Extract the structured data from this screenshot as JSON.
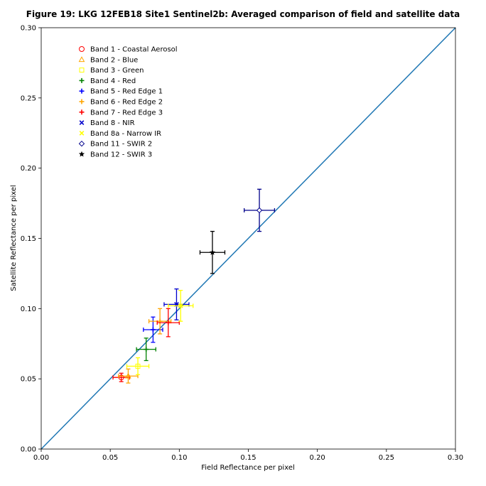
{
  "chart_data": {
    "type": "scatter",
    "title": "Figure 19: LKG 12FEB18 Site1 Sentinel2b: Averaged comparison of field and satellite data",
    "xlabel": "Field Reflectance per pixel",
    "ylabel": "Satellite Reflectance per pixel",
    "xlim": [
      0,
      0.3
    ],
    "ylim": [
      0,
      0.3
    ],
    "xticks": [
      "0.00",
      "0.05",
      "0.10",
      "0.15",
      "0.20",
      "0.25",
      "0.30"
    ],
    "yticks": [
      "0.00",
      "0.05",
      "0.10",
      "0.15",
      "0.20",
      "0.25",
      "0.30"
    ],
    "grid": false,
    "legend_position": "upper-left",
    "reference_line": {
      "x": [
        0,
        0.3
      ],
      "y": [
        0,
        0.3
      ],
      "color": "#1f77b4"
    },
    "series": [
      {
        "name": "Band 1 - Coastal Aerosol",
        "marker": "circle",
        "color": "#ff0000",
        "x": 0.058,
        "y": 0.051,
        "xerr": 0.006,
        "yerr": 0.003
      },
      {
        "name": "Band 2 - Blue",
        "marker": "triangle",
        "color": "#ffa500",
        "x": 0.063,
        "y": 0.052,
        "xerr": 0.007,
        "yerr": 0.005
      },
      {
        "name": "Band 3 - Green",
        "marker": "square",
        "color": "#ffff00",
        "x": 0.07,
        "y": 0.059,
        "xerr": 0.008,
        "yerr": 0.006
      },
      {
        "name": "Band 4 - Red",
        "marker": "plus",
        "color": "#008000",
        "x": 0.076,
        "y": 0.071,
        "xerr": 0.007,
        "yerr": 0.008
      },
      {
        "name": "Band 5 - Red Edge 1",
        "marker": "plus",
        "color": "#0000ff",
        "x": 0.081,
        "y": 0.085,
        "xerr": 0.007,
        "yerr": 0.009
      },
      {
        "name": "Band 6 - Red Edge 2",
        "marker": "plus",
        "color": "#ffa500",
        "x": 0.086,
        "y": 0.091,
        "xerr": 0.008,
        "yerr": 0.009
      },
      {
        "name": "Band 7 - Red Edge 3",
        "marker": "plus",
        "color": "#ff0000",
        "x": 0.092,
        "y": 0.09,
        "xerr": 0.008,
        "yerr": 0.01
      },
      {
        "name": "Band 8 - NIR",
        "marker": "x",
        "color": "#0000cd",
        "x": 0.098,
        "y": 0.103,
        "xerr": 0.009,
        "yerr": 0.011
      },
      {
        "name": "Band 8a - Narrow IR",
        "marker": "x",
        "color": "#ffff00",
        "x": 0.101,
        "y": 0.102,
        "xerr": 0.009,
        "yerr": 0.011
      },
      {
        "name": "Band 11 - SWIR 2",
        "marker": "diamond",
        "color": "#00008b",
        "x": 0.158,
        "y": 0.17,
        "xerr": 0.011,
        "yerr": 0.015
      },
      {
        "name": "Band 12 - SWIR 3",
        "marker": "star",
        "color": "#000000",
        "x": 0.124,
        "y": 0.14,
        "xerr": 0.009,
        "yerr": 0.015
      }
    ]
  }
}
